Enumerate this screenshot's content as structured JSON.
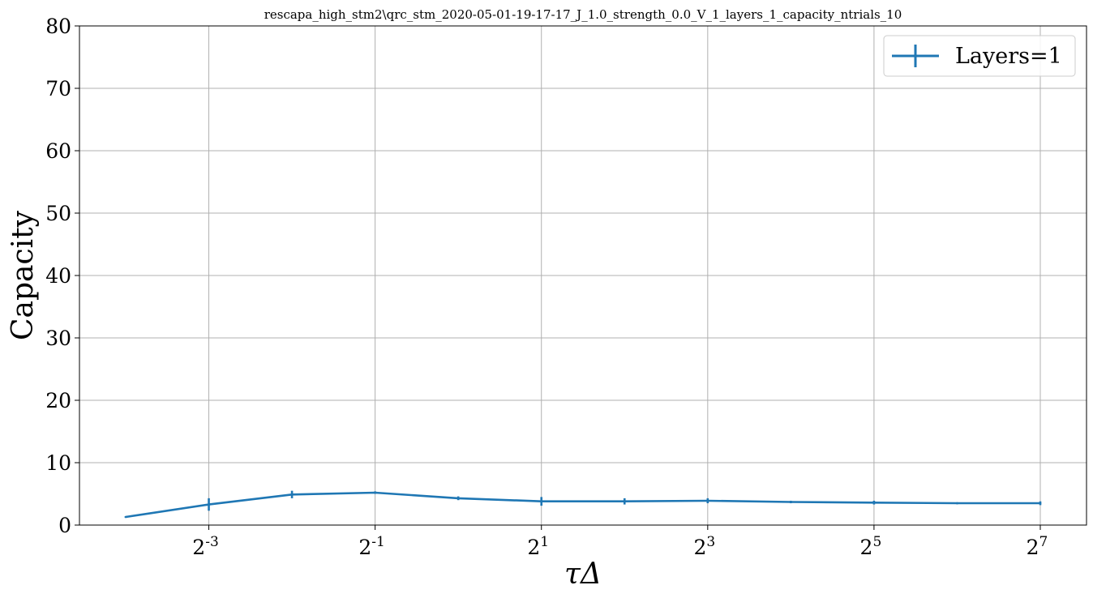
{
  "chart_data": {
    "type": "line",
    "title": "rescapa_high_stm2\\qrc_stm_2020-05-01-19-17-17_J_1.0_strength_0.0_V_1_layers_1_capacity_ntrials_10",
    "xlabel": "τΔ",
    "ylabel": "Capacity",
    "x_scale": "log2",
    "xlim": [
      0.0625,
      128
    ],
    "ylim": [
      0,
      80
    ],
    "grid": true,
    "legend_position": "top-right",
    "x_ticks": [
      {
        "base": "2",
        "exp": "-3",
        "value": 0.125
      },
      {
        "base": "2",
        "exp": "-1",
        "value": 0.5
      },
      {
        "base": "2",
        "exp": "1",
        "value": 2
      },
      {
        "base": "2",
        "exp": "3",
        "value": 8
      },
      {
        "base": "2",
        "exp": "5",
        "value": 32
      },
      {
        "base": "2",
        "exp": "7",
        "value": 128
      }
    ],
    "y_ticks": [
      "0",
      "10",
      "20",
      "30",
      "40",
      "50",
      "60",
      "70",
      "80"
    ],
    "series": [
      {
        "name": "Layers=1",
        "color": "#1f77b4",
        "x": [
          0.0625,
          0.125,
          0.25,
          0.5,
          1,
          2,
          4,
          8,
          16,
          32,
          64,
          128
        ],
        "y": [
          1.3,
          3.3,
          4.9,
          5.2,
          4.3,
          3.8,
          3.8,
          3.9,
          3.7,
          3.6,
          3.5,
          3.5
        ],
        "yerr": [
          0.1,
          1.0,
          0.6,
          0.2,
          0.3,
          0.7,
          0.5,
          0.4,
          0.2,
          0.3,
          0.15,
          0.3
        ]
      }
    ]
  }
}
